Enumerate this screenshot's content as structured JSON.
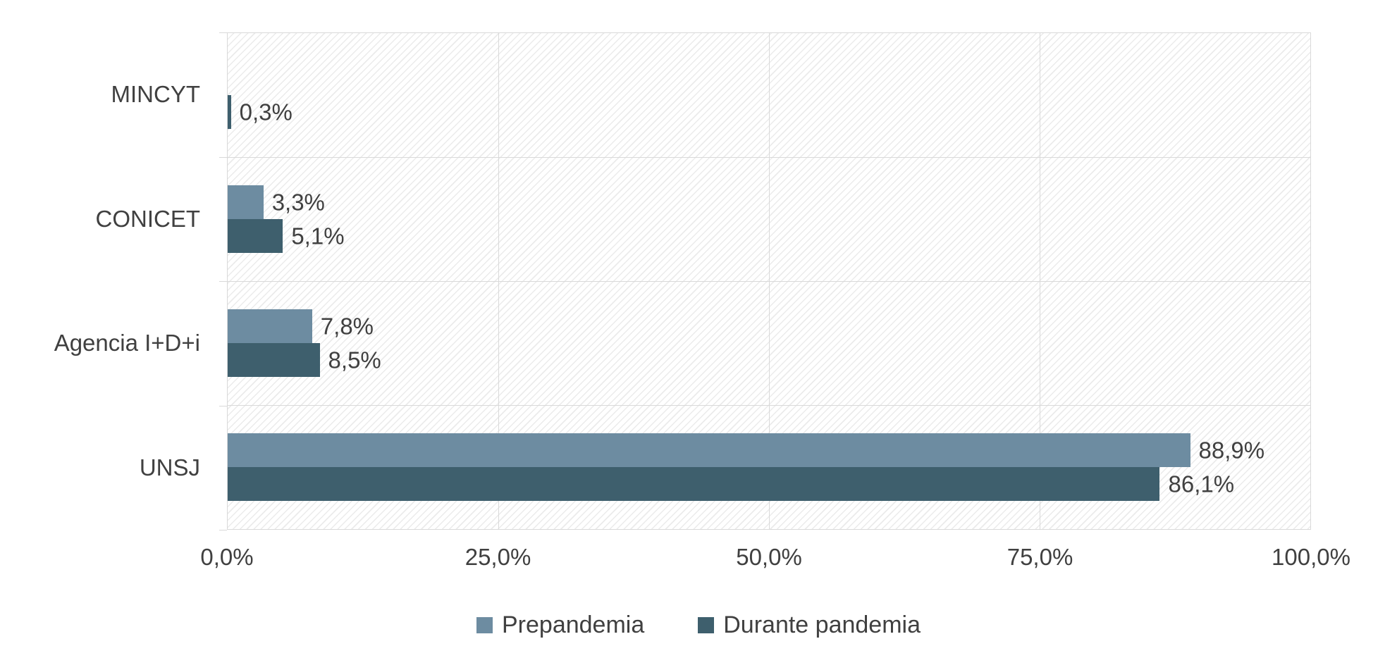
{
  "chart_data": {
    "type": "bar",
    "orientation": "horizontal",
    "title": "",
    "categories": [
      "MINCYT",
      "CONICET",
      "Agencia I+D+i",
      "UNSJ"
    ],
    "series": [
      {
        "name": "Prepandemia",
        "color": "#6d8ca1",
        "values": [
          0,
          3.3,
          7.8,
          88.9
        ],
        "labels": [
          "",
          "3,3%",
          "7,8%",
          "88,9%"
        ]
      },
      {
        "name": "Durante pandemia",
        "color": "#3e5f6d",
        "values": [
          0.3,
          5.1,
          8.5,
          86.1
        ],
        "labels": [
          "0,3%",
          "5,1%",
          "8,5%",
          "86,1%"
        ]
      }
    ],
    "x_ticks": [
      "0,0%",
      "25,0%",
      "50,0%",
      "75,0%",
      "100,0%"
    ],
    "xlim": [
      0,
      100
    ],
    "grid": true,
    "legend_position": "bottom"
  },
  "colors": {
    "grid": "#d9d9d9",
    "text": "#404040",
    "background": "#ffffff",
    "hatch": "#ebebeb"
  }
}
